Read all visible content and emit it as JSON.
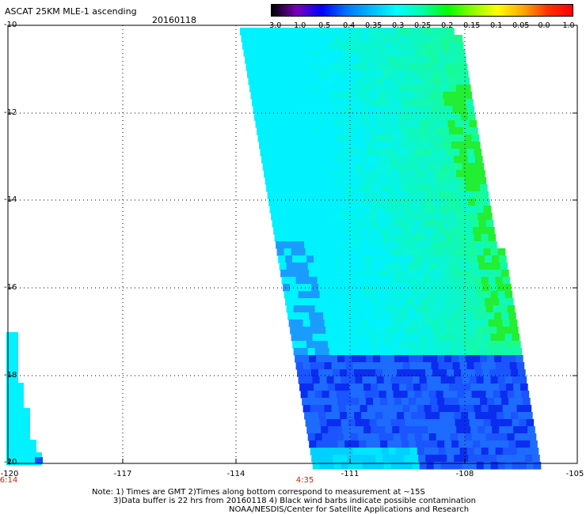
{
  "header": {
    "title": "ASCAT 25KM MLE-1 ascending",
    "date": "20160118"
  },
  "colorbar": {
    "labels": [
      "-3.0",
      "-1.0",
      "-0.5",
      "-0.4",
      "-0.35",
      "-0.3",
      "-0.25",
      "-0.2",
      "-0.15",
      "-0.1",
      "-0.05",
      "0.0",
      "1.0"
    ],
    "colors": [
      "#000000",
      "#7a00b8",
      "#0000ff",
      "#0077ff",
      "#00bbff",
      "#00ffff",
      "#00ffaa",
      "#00ff00",
      "#88ff00",
      "#ffff00",
      "#ffaa00",
      "#ff3300",
      "#ff0000"
    ]
  },
  "axes": {
    "lat_labels": [
      "-10",
      "-12",
      "-14",
      "-16",
      "-18",
      "-20"
    ],
    "lon_labels": [
      "-120",
      "-117",
      "-114",
      "-111",
      "-108",
      "-105"
    ],
    "time_labels": [
      "6:14",
      "4:35"
    ]
  },
  "notes": {
    "line1": "Note: 1) Times are GMT 2)Times along bottom correspond to measurement at ~15S",
    "line2": "3)Data buffer is 22 hrs from 20160118 4) Black wind barbs indicate possible contamination",
    "line3": "NOAA/NESDIS/Center for Satellite Applications and Research"
  }
}
